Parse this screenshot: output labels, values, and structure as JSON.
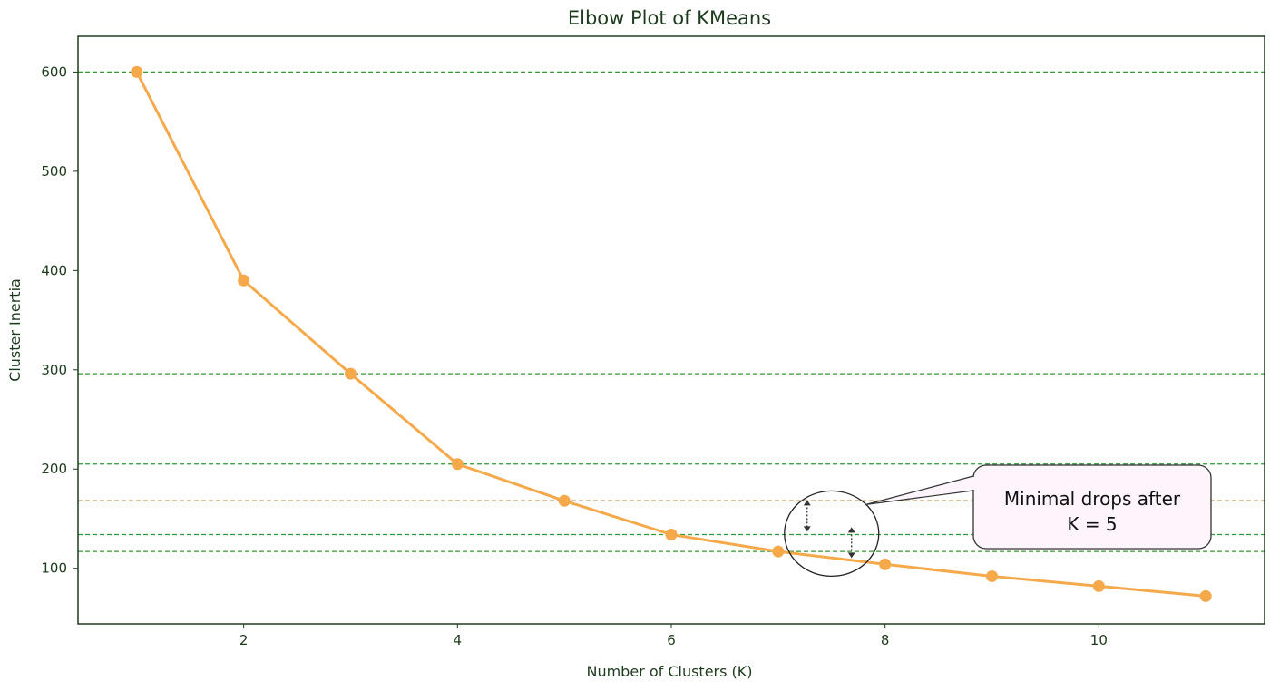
{
  "chart_data": {
    "type": "line",
    "title": "Elbow Plot of KMeans",
    "xlabel": "Number of Clusters (K)",
    "ylabel": "Cluster Inertia",
    "x": [
      1,
      2,
      3,
      4,
      5,
      6,
      7,
      8,
      9,
      10,
      11
    ],
    "series": [
      {
        "values": [
          600,
          390,
          296,
          205,
          168,
          134,
          117,
          104,
          92,
          82,
          72
        ],
        "color": "#f5a94a"
      }
    ],
    "xlim": [
      0.45,
      11.55
    ],
    "ylim": [
      44,
      636
    ],
    "xticks": [
      2,
      4,
      6,
      8,
      10
    ],
    "yticks": [
      100,
      200,
      300,
      400,
      500,
      600
    ],
    "grid": false,
    "reference_lines": [
      {
        "y": 600,
        "color": "#2e9c2e"
      },
      {
        "y": 296,
        "color": "#2e9c2e"
      },
      {
        "y": 205,
        "color": "#2e9c2e"
      },
      {
        "y": 168,
        "color": "#a06020"
      },
      {
        "y": 134,
        "color": "#2e9c2e"
      },
      {
        "y": 117,
        "color": "#2e9c2e"
      }
    ],
    "annotation": {
      "text_lines": [
        "Minimal drops after",
        "K = 5"
      ],
      "target_x": 7.5,
      "target_y": 135
    }
  }
}
